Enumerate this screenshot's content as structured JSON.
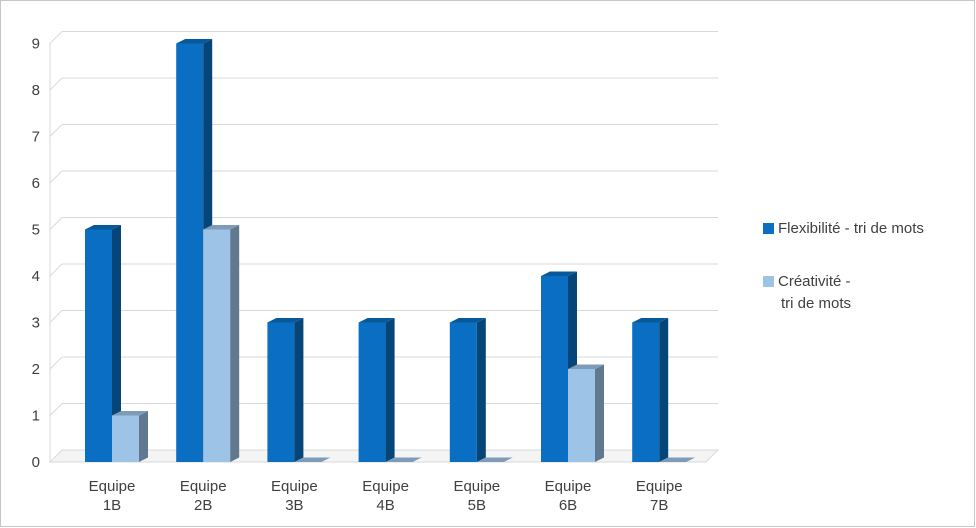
{
  "chart_data": {
    "type": "bar",
    "title": "",
    "xlabel": "",
    "ylabel": "",
    "ylim": [
      0,
      9
    ],
    "yticks": [
      "0",
      "1",
      "2",
      "3",
      "4",
      "5",
      "6",
      "7",
      "8",
      "9"
    ],
    "grid": true,
    "legend_position": "right",
    "categories": [
      [
        "Equipe",
        "1B"
      ],
      [
        "Equipe",
        "2B"
      ],
      [
        "Equipe",
        "3B"
      ],
      [
        "Equipe",
        "4B"
      ],
      [
        "Equipe",
        "5B"
      ],
      [
        "Equipe",
        "6B"
      ],
      [
        "Equipe",
        "7B"
      ]
    ],
    "series": [
      {
        "name_lines": [
          "Flexibilité - tri de mots"
        ],
        "name": "Flexibilité - tri de mots",
        "color": "#0a6fc2",
        "values": [
          5,
          9,
          3,
          3,
          3,
          4,
          3
        ]
      },
      {
        "name_lines": [
          "Créativité -",
          "tri de mots"
        ],
        "name": "Créativité - tri de mots",
        "color": "#9dc3e6",
        "values": [
          1,
          5,
          0,
          0,
          0,
          2,
          0
        ]
      }
    ]
  }
}
